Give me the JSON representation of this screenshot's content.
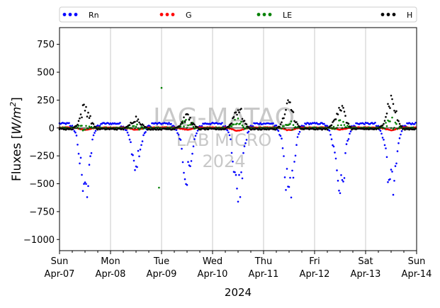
{
  "chart_data": {
    "type": "scatter",
    "xlabel": "2024",
    "ylabel": "Fluxes [W/m²]",
    "ylim": [
      -1100,
      900
    ],
    "xlim": [
      0,
      7
    ],
    "grid": "vertical",
    "legend_placement": "top",
    "yticks": [
      750,
      500,
      250,
      0,
      -250,
      -500,
      -750,
      -1000
    ],
    "xticks": [
      {
        "day": "Sun",
        "date": "Apr-07"
      },
      {
        "day": "Mon",
        "date": "Apr-08"
      },
      {
        "day": "Tue",
        "date": "Apr-09"
      },
      {
        "day": "Wed",
        "date": "Apr-10"
      },
      {
        "day": "Thu",
        "date": "Apr-11"
      },
      {
        "day": "Fri",
        "date": "Apr-12"
      },
      {
        "day": "Sat",
        "date": "Apr-13"
      },
      {
        "day": "Sun",
        "date": "Apr-14"
      }
    ],
    "watermark": [
      "IAG-MATAO",
      "LAB MICRO",
      "2024"
    ],
    "series": [
      {
        "name": "Rn",
        "color": "#0000ff",
        "daily_min": [
          -660,
          -380,
          -520,
          -670,
          -670,
          -690,
          -620
        ],
        "night_value": 40
      },
      {
        "name": "G",
        "color": "#ff0000",
        "daily_min": [
          -15,
          -15,
          -15,
          -25,
          -20,
          -15,
          -20
        ],
        "night_value": 5
      },
      {
        "name": "LE",
        "color": "#008000",
        "daily_max": [
          60,
          40,
          360,
          100,
          80,
          100,
          100
        ],
        "outliers": [
          {
            "x": 1.95,
            "y": -535
          },
          {
            "x": 2.0,
            "y": 360
          }
        ]
      },
      {
        "name": "H",
        "color": "#000000",
        "daily_max": [
          230,
          110,
          130,
          220,
          260,
          250,
          320
        ],
        "night_value": -10
      }
    ]
  }
}
